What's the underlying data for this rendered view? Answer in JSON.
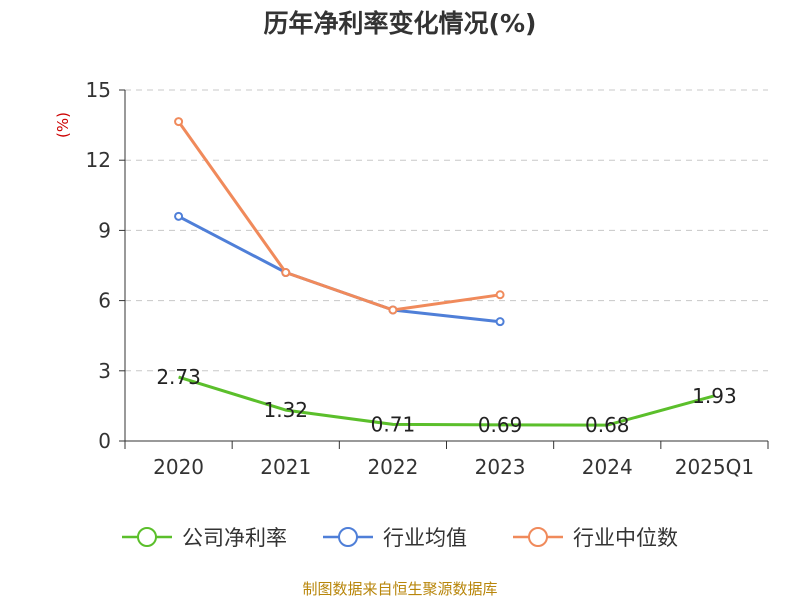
{
  "chart_data": {
    "type": "line",
    "title": "历年净利率变化情况(%)",
    "ylabel": "(%)",
    "xlabel": "",
    "ylim": [
      0,
      15
    ],
    "yticks": [
      "0",
      "3",
      "6",
      "9",
      "12",
      "15"
    ],
    "categories": [
      "2020",
      "2021",
      "2022",
      "2023",
      "2024",
      "2025Q1"
    ],
    "series": [
      {
        "name": "公司净利率",
        "color": "#5bbf2b",
        "values": [
          2.73,
          1.32,
          0.71,
          0.69,
          0.68,
          1.93
        ],
        "labels": [
          "2.73",
          "1.32",
          "0.71",
          "0.69",
          "0.68",
          "1.93"
        ],
        "show_labels": true,
        "show_markers": false
      },
      {
        "name": "行业均值",
        "color": "#4f7fd8",
        "values": [
          9.6,
          7.2,
          5.6,
          5.1,
          null,
          null
        ],
        "show_labels": false,
        "show_markers": true
      },
      {
        "name": "行业中位数",
        "color": "#f08a5b",
        "values": [
          13.65,
          7.2,
          5.6,
          6.25,
          null,
          null
        ],
        "show_labels": false,
        "show_markers": true
      }
    ],
    "grid": true,
    "legend_position": "bottom"
  },
  "footer": {
    "source": "制图数据来自恒生聚源数据库"
  }
}
